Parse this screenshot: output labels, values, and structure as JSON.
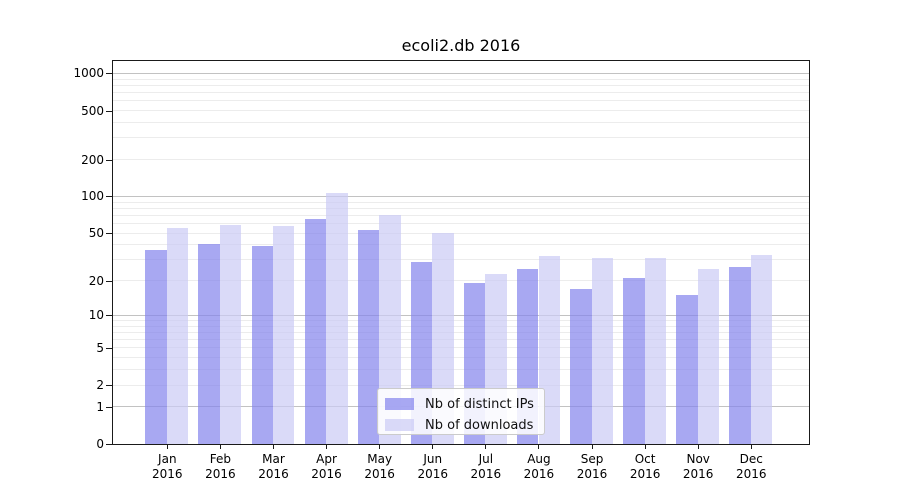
{
  "chart_data": {
    "type": "bar",
    "title": "ecoli2.db 2016",
    "categories": [
      "Jan",
      "Feb",
      "Mar",
      "Apr",
      "May",
      "Jun",
      "Jul",
      "Aug",
      "Sep",
      "Oct",
      "Nov",
      "Dec"
    ],
    "xtick_year_line": "2016",
    "series": [
      {
        "name": "Nb of distinct IPs",
        "color": "#8383ec",
        "fill_opacity": 0.7,
        "values": [
          36,
          41,
          39,
          65,
          53,
          29,
          19,
          25,
          17,
          21,
          15,
          26
        ]
      },
      {
        "name": "Nb of downloads",
        "color": "#cbcbf5",
        "fill_opacity": 0.7,
        "values": [
          55,
          58,
          57,
          107,
          70,
          50,
          23,
          32,
          31,
          31,
          25,
          33
        ]
      }
    ],
    "yscale": "log1p",
    "yticks": [
      0,
      1,
      2,
      5,
      10,
      20,
      50,
      100,
      200,
      500,
      1000
    ],
    "ylim": [
      0,
      1260
    ],
    "xlabel": "",
    "ylabel": "",
    "grid": {
      "major_color": "#c2c2c2",
      "minor_color": "#ececec",
      "minor_on": true
    },
    "legend_position": "lower-center",
    "background_color": "#ffffff",
    "axis_color": "#1a1a1a"
  }
}
